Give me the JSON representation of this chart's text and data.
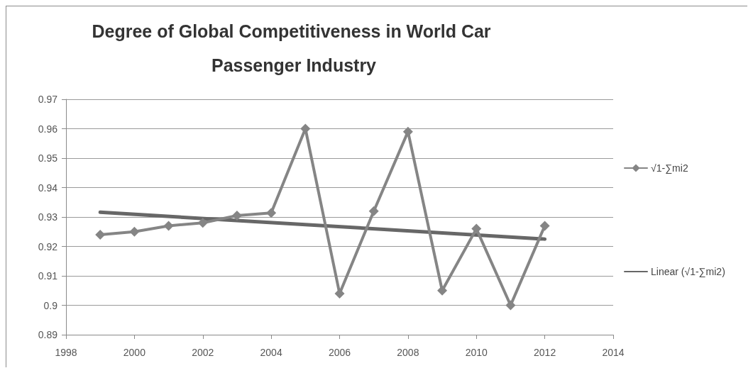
{
  "chart_data": {
    "type": "line",
    "title": "Degree of Global Competitiveness in World Car Passenger Industry",
    "x": [
      1999,
      2000,
      2001,
      2002,
      2003,
      2004,
      2005,
      2006,
      2007,
      2008,
      2009,
      2010,
      2011,
      2012
    ],
    "series": [
      {
        "name": "√1-∑mi2",
        "color": "#858585",
        "marker": "diamond",
        "values": [
          0.924,
          0.925,
          0.927,
          0.928,
          0.9305,
          0.9314,
          0.96,
          0.904,
          0.932,
          0.959,
          0.905,
          0.926,
          0.9,
          0.927
        ]
      },
      {
        "name": "Linear (√1-∑mi2)",
        "type": "line",
        "color": "#676767",
        "marker": "none",
        "x": [
          1999,
          2012
        ],
        "values": [
          0.9316,
          0.9225
        ]
      }
    ],
    "xlim": [
      1998,
      2014
    ],
    "xticks": [
      1998,
      2000,
      2002,
      2004,
      2006,
      2008,
      2010,
      2012,
      2014
    ],
    "ylim": [
      0.89,
      0.97
    ],
    "yticks": [
      0.89,
      0.9,
      0.91,
      0.92,
      0.93,
      0.94,
      0.95,
      0.96,
      0.97
    ],
    "grid": "y",
    "legend": "right",
    "line_style": "solid"
  }
}
